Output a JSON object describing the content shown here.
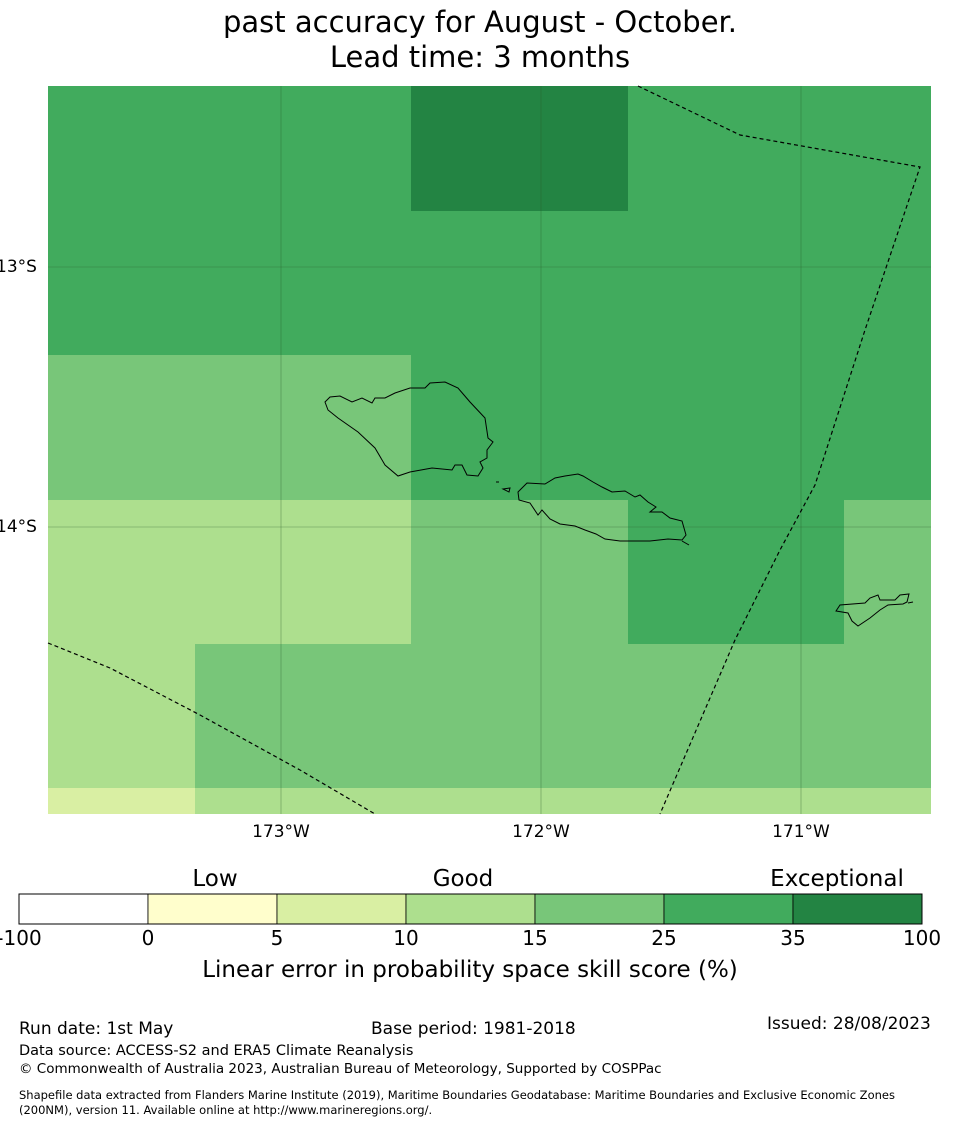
{
  "title": {
    "line1": "past accuracy for August - October.",
    "line2": "Lead time: 3 months"
  },
  "map": {
    "lat_labels": [
      "13°S",
      "14°S"
    ],
    "lon_labels": [
      "173°W",
      "172°W",
      "171°W"
    ],
    "colors": {
      "skill_0_5": "#fffecc",
      "skill_5_10": "#d9efa3",
      "skill_10_15": "#addf8e",
      "skill_15_25": "#78c679",
      "skill_25_35": "#41ab5d",
      "skill_35_100": "#238443",
      "coastline": "#000000",
      "eez_boundary": "#000000",
      "gridline": "#555555"
    }
  },
  "colorbar": {
    "categories": [
      "Low",
      "Good",
      "Exceptional"
    ],
    "ticks": [
      "-100",
      "0",
      "5",
      "10",
      "15",
      "25",
      "35",
      "100"
    ],
    "colors": [
      "#ffffff",
      "#fffecc",
      "#d9efa3",
      "#addf8e",
      "#78c679",
      "#41ab5d",
      "#238443"
    ],
    "label": "Linear error in probability space skill score (%)"
  },
  "footer": {
    "run_date": "Run date: 1st May",
    "base_period": "Base period: 1981-2018",
    "issued": "Issued: 28/08/2023",
    "data_source": "Data source: ACCESS-S2 and ERA5 Climate Reanalysis",
    "copyright": "© Commonwealth of Australia 2023, Australian Bureau of Meteorology, Supported by COSPPac",
    "shapefile_line1": "Shapefile data extracted from Flanders Marine Institute (2019), Maritime Boundaries Geodatabase: Maritime Boundaries and Exclusive Economic Zones",
    "shapefile_line2": "(200NM), version 11. Available online at http://www.marineregions.org/."
  }
}
